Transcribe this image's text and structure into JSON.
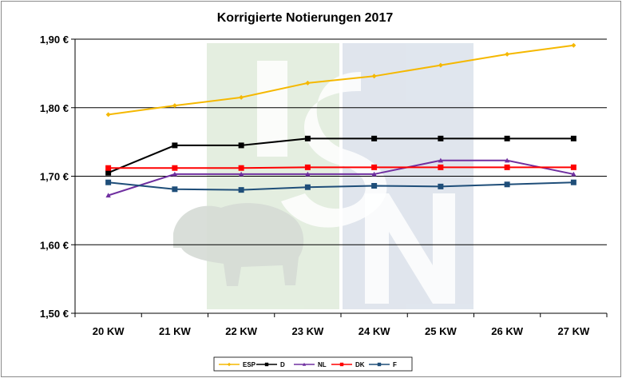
{
  "chart_data": {
    "type": "line",
    "title": "Korrigierte Notierungen 2017",
    "xlabel": "",
    "ylabel": "",
    "categories": [
      "20 KW",
      "21 KW",
      "22 KW",
      "23 KW",
      "24 KW",
      "25 KW",
      "26 KW",
      "27 KW"
    ],
    "y_ticks": [
      "1,50 €",
      "1,60 €",
      "1,70 €",
      "1,80 €",
      "1,90 €"
    ],
    "ylim": [
      1.5,
      1.9
    ],
    "grid": "horizontal",
    "legend_position": "bottom",
    "watermark": "ISN",
    "series": [
      {
        "name": "ESP",
        "color": "#f5b800",
        "marker": "diamond",
        "values": [
          1.79,
          1.803,
          1.815,
          1.836,
          1.846,
          1.862,
          1.878,
          1.891
        ]
      },
      {
        "name": "D",
        "color": "#000000",
        "marker": "square",
        "values": [
          1.705,
          1.745,
          1.745,
          1.755,
          1.755,
          1.755,
          1.755,
          1.755
        ]
      },
      {
        "name": "NL",
        "color": "#7030a0",
        "marker": "triangle",
        "values": [
          1.672,
          1.703,
          1.703,
          1.703,
          1.703,
          1.723,
          1.723,
          1.703
        ]
      },
      {
        "name": "DK",
        "color": "#ff0000",
        "marker": "square",
        "values": [
          1.712,
          1.712,
          1.712,
          1.713,
          1.713,
          1.713,
          1.713,
          1.713
        ]
      },
      {
        "name": "F",
        "color": "#1f4e79",
        "marker": "square",
        "values": [
          1.691,
          1.681,
          1.68,
          1.684,
          1.686,
          1.685,
          1.688,
          1.691
        ]
      }
    ]
  }
}
